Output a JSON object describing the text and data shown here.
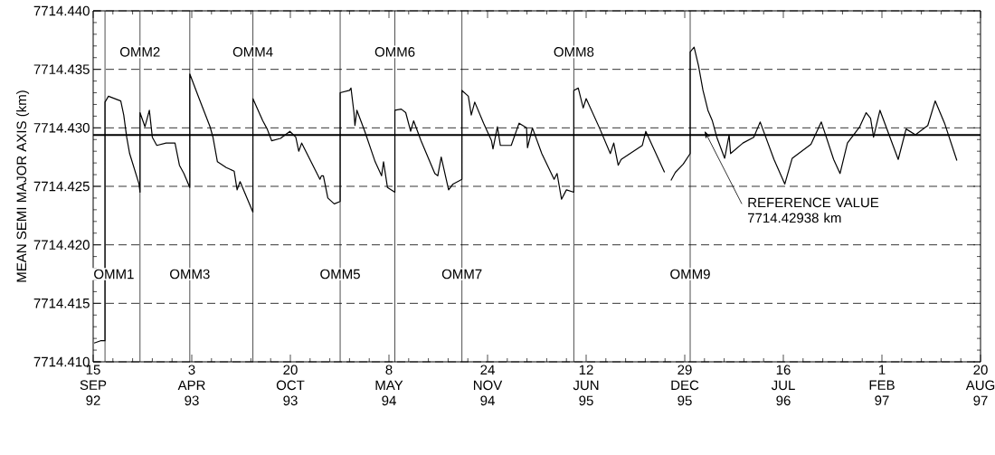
{
  "chart_data": {
    "type": "line",
    "ylabel": "MEAN SEMI MAJOR AXIS (km)",
    "x": [
      "1992-09-17",
      "1992-09-30",
      "1992-10-09",
      "1992-10-09",
      "1992-10-16",
      "1992-11-10",
      "1992-11-16",
      "1992-11-22",
      "1992-11-28",
      "1992-12-17",
      "1992-12-19",
      "1992-12-19",
      "1992-12-29",
      "1993-01-07",
      "1993-01-13",
      "1993-01-22",
      "1993-02-10",
      "1993-02-28",
      "1993-03-09",
      "1993-03-18",
      "1993-03-30",
      "1993-03-30",
      "1993-04-18",
      "1993-05-10",
      "1993-05-16",
      "1993-05-25",
      "1993-06-12",
      "1993-06-28",
      "1993-07-04",
      "1993-07-10",
      "1993-08-05",
      "1993-08-05",
      "1993-08-25",
      "1993-09-03",
      "1993-09-12",
      "1993-09-30",
      "1993-10-19",
      "1993-10-31",
      "1993-11-06",
      "1993-11-12",
      "1993-12-19",
      "1993-12-22",
      "1993-12-26",
      "1994-01-04",
      "1994-01-17",
      "1994-01-29",
      "1994-01-29",
      "1994-02-17",
      "1994-02-20",
      "1994-02-26",
      "1994-02-28",
      "1994-03-04",
      "1994-03-20",
      "1994-04-10",
      "1994-04-23",
      "1994-04-27",
      "1994-05-05",
      "1994-05-20",
      "1994-05-20",
      "1994-06-02",
      "1994-06-11",
      "1994-06-21",
      "1994-06-27",
      "1994-07-12",
      "1994-08-09",
      "1994-08-15",
      "1994-08-22",
      "1994-09-06",
      "1994-09-15",
      "1994-10-03",
      "1994-10-03",
      "1994-10-16",
      "1994-10-22",
      "1994-10-29",
      "1994-11-16",
      "1994-12-02",
      "1994-12-05",
      "1994-12-14",
      "1994-12-20",
      "1995-01-11",
      "1995-01-27",
      "1995-02-11",
      "1995-02-13",
      "1995-02-23",
      "1995-03-14",
      "1995-04-08",
      "1995-04-14",
      "1995-04-23",
      "1995-05-03",
      "1995-05-18",
      "1995-05-18",
      "1995-05-27",
      "1995-06-06",
      "1995-06-12",
      "1995-07-10",
      "1995-07-31",
      "1995-08-07",
      "1995-08-16",
      "1995-08-22",
      "1995-10-04",
      "1995-10-11",
      "1995-11-18",
      "1995-11-25",
      "1995-12-01",
      "1995-12-10",
      "1995-12-26",
      "1996-01-09",
      "1996-01-09",
      "1996-01-17",
      "1996-01-26",
      "1996-02-04",
      "1996-02-14",
      "1996-02-23",
      "1996-03-03",
      "1996-03-19",
      "1996-03-28",
      "1996-03-31",
      "1996-04-25",
      "1996-05-17",
      "1996-05-30",
      "1996-06-27",
      "1996-07-19",
      "1996-08-03",
      "1996-09-10",
      "1996-10-01",
      "1996-10-26",
      "1996-11-08",
      "1996-11-23",
      "1996-12-18",
      "1996-12-31",
      "1997-01-09",
      "1997-01-15",
      "1997-01-28",
      "1997-03-06",
      "1997-03-22",
      "1997-04-10",
      "1997-05-05",
      "1997-05-20",
      "1997-06-08",
      "1997-07-03"
    ],
    "series": [
      {
        "color": "#000000",
        "values": [
          7714.4116,
          7714.4118,
          7714.4118,
          7714.4322,
          7714.4327,
          7714.4323,
          7714.4311,
          7714.4292,
          7714.4278,
          7714.4252,
          7714.4245,
          7714.4313,
          7714.4301,
          7714.4315,
          7714.4292,
          7714.4285,
          7714.4287,
          7714.4287,
          7714.4268,
          7714.4261,
          7714.4249,
          7714.4346,
          7714.4325,
          7714.4301,
          7714.4292,
          7714.4271,
          7714.4266,
          7714.4263,
          7714.4247,
          7714.4254,
          7714.4228,
          7714.4325,
          7714.4306,
          7714.4299,
          7714.4289,
          7714.4291,
          7714.4297,
          7714.4292,
          7714.428,
          7714.4287,
          7714.4256,
          7714.4259,
          7714.4259,
          7714.424,
          7714.4235,
          7714.4237,
          7714.433,
          7714.4332,
          7714.4334,
          7714.4313,
          7714.4302,
          7714.4315,
          7714.4297,
          7714.4271,
          7714.4259,
          7714.4271,
          7714.4249,
          7714.4245,
          7714.4315,
          7714.4316,
          7714.4313,
          7714.4297,
          7714.4306,
          7714.4289,
          7714.4261,
          7714.4259,
          7714.4275,
          7714.4247,
          7714.4252,
          7714.4256,
          7714.4332,
          7714.4327,
          7714.4311,
          7714.4322,
          7714.4304,
          7714.4289,
          7714.4282,
          7714.4301,
          7714.4285,
          7714.4285,
          7714.4304,
          7714.43,
          7714.4283,
          7714.43,
          7714.4278,
          7714.4256,
          7714.4261,
          7714.4239,
          7714.4247,
          7714.4245,
          7714.4332,
          7714.4334,
          7714.4317,
          7714.4325,
          7714.4299,
          7714.4278,
          7714.4287,
          7714.4268,
          7714.4273,
          7714.4285,
          7714.4297,
          7714.4262,
          null,
          7714.4255,
          7714.4262,
          7714.4269,
          7714.4278,
          7714.4365,
          7714.4369,
          7714.4353,
          7714.4332,
          7714.4315,
          7714.4306,
          7714.4292,
          7714.4274,
          7714.4294,
          7714.4278,
          7714.4287,
          7714.4292,
          7714.4305,
          7714.4273,
          7714.4252,
          7714.4274,
          7714.4286,
          7714.4305,
          7714.4273,
          7714.4261,
          7714.4287,
          7714.4301,
          7714.4313,
          7714.4308,
          7714.4292,
          7714.4315,
          7714.4273,
          7714.4299,
          7714.4294,
          7714.4302,
          7714.4323,
          7714.4304,
          7714.4272
        ]
      }
    ],
    "xlim": [
      "1992-09-15",
      "1997-08-20"
    ],
    "xticks": [
      {
        "value": "1992-09-15",
        "label": "15 SEP 92"
      },
      {
        "value": "1993-04-03",
        "label": "3 APR 93"
      },
      {
        "value": "1993-10-20",
        "label": "20 OCT 93"
      },
      {
        "value": "1994-05-08",
        "label": "8 MAY 94"
      },
      {
        "value": "1994-11-24",
        "label": "24 NOV 94"
      },
      {
        "value": "1995-06-12",
        "label": "12 JUN 95"
      },
      {
        "value": "1995-12-29",
        "label": "29 DEC 95"
      },
      {
        "value": "1996-07-16",
        "label": "16 JUL 96"
      },
      {
        "value": "1997-02-01",
        "label": "1 FEB 97"
      },
      {
        "value": "1997-08-20",
        "label": "20 AUG 97"
      }
    ],
    "ylim": [
      7714.41,
      7714.44
    ],
    "yticks": [
      {
        "value": 7714.41,
        "label": "7714.410"
      },
      {
        "value": 7714.415,
        "label": "7714.415"
      },
      {
        "value": 7714.42,
        "label": "7714.420"
      },
      {
        "value": 7714.425,
        "label": "7714.425"
      },
      {
        "value": 7714.43,
        "label": "7714.430"
      },
      {
        "value": 7714.435,
        "label": "7714.435"
      },
      {
        "value": 7714.44,
        "label": "7714.440"
      }
    ],
    "grid": "y",
    "ref_lines": [
      {
        "axis": "x",
        "value": "1992-10-09",
        "label": "OMM1",
        "color": "#000000"
      },
      {
        "axis": "x",
        "value": "1992-12-19",
        "label": "OMM2",
        "color": "#000000"
      },
      {
        "axis": "x",
        "value": "1993-03-30",
        "label": "OMM3",
        "color": "#000000"
      },
      {
        "axis": "x",
        "value": "1993-08-05",
        "label": "OMM4",
        "color": "#000000"
      },
      {
        "axis": "x",
        "value": "1994-01-29",
        "label": "OMM5",
        "color": "#000000"
      },
      {
        "axis": "x",
        "value": "1994-05-20",
        "label": "OMM6",
        "color": "#000000"
      },
      {
        "axis": "x",
        "value": "1994-10-03",
        "label": "OMM7",
        "color": "#000000"
      },
      {
        "axis": "x",
        "value": "1995-05-18",
        "label": "OMM8",
        "color": "#000000"
      },
      {
        "axis": "x",
        "value": "1996-01-09",
        "label": "OMM9",
        "color": "#000000"
      },
      {
        "axis": "y",
        "value": 7714.42938,
        "label": "REFERENCE VALUE 7714.42938 km",
        "color": "#000000"
      }
    ]
  }
}
